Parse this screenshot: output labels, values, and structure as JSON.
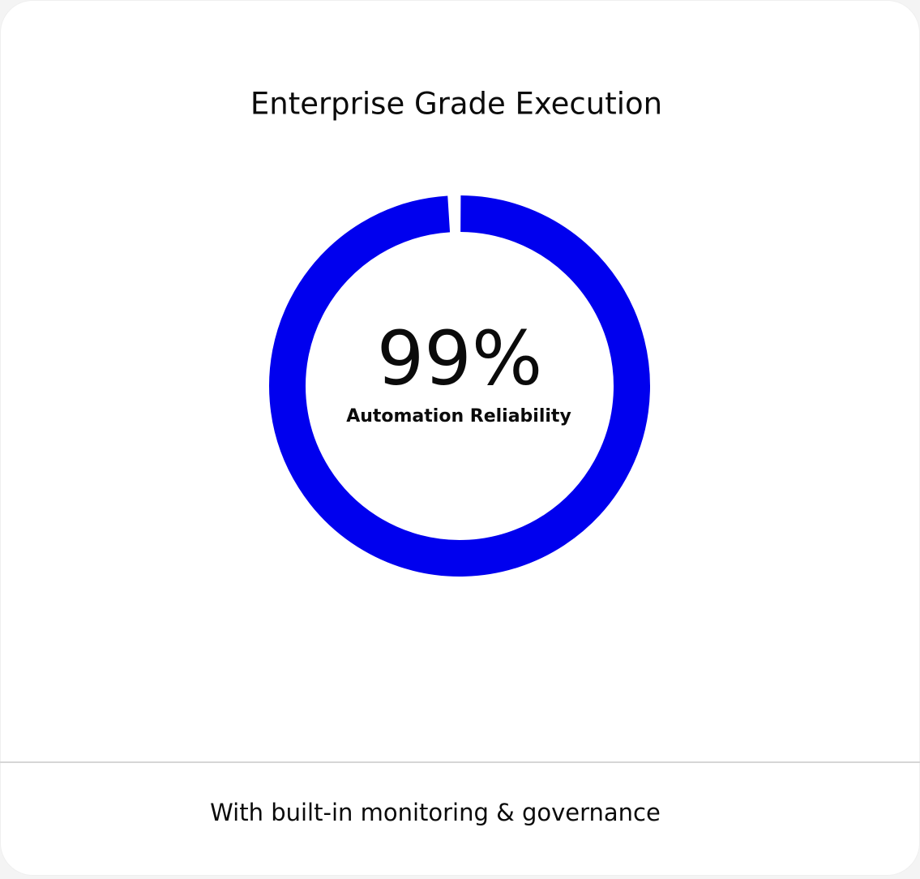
{
  "card": {
    "title": "Enterprise Grade Execution",
    "footer": "With built-in monitoring & governance"
  },
  "chart_data": {
    "type": "donut",
    "values": [
      99
    ],
    "value_labels": [
      "99%"
    ],
    "label": "Automation Reliability",
    "ylim": [
      0,
      100
    ],
    "color": "#0000ee"
  }
}
